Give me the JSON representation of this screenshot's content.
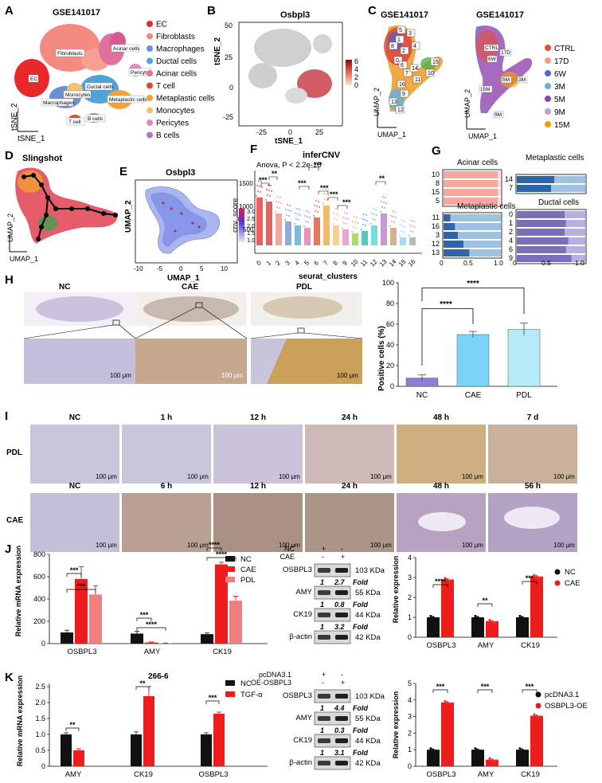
{
  "panels": {
    "A": {
      "letter": "A",
      "title": "GSE141017",
      "xlabel": "tSNE_1",
      "ylabel": "tSNE_2",
      "legend": [
        {
          "label": "EC",
          "color": "#e8282a"
        },
        {
          "label": "Fibroblasts",
          "color": "#f48a80"
        },
        {
          "label": "Macrophages",
          "color": "#6b8fcf"
        },
        {
          "label": "Ductal cells",
          "color": "#4ea3d9"
        },
        {
          "label": "Acinar cells",
          "color": "#e070a0"
        },
        {
          "label": "T cell",
          "color": "#d94e2a"
        },
        {
          "label": "Metaplastic cells",
          "color": "#f0a33a"
        },
        {
          "label": "Monocytes",
          "color": "#f5c06b"
        },
        {
          "label": "Pericytes",
          "color": "#e586c4"
        },
        {
          "label": "B cells",
          "color": "#b574c9"
        }
      ],
      "cluster_labels": [
        "Fibroblasts",
        "Acinar cells",
        "EC",
        "Pericytes",
        "Ductal cells",
        "Metaplastic cells",
        "Macrophages",
        "Monocytes",
        "T cell",
        "B cells"
      ]
    },
    "B": {
      "letter": "B",
      "title": "Osbpl3",
      "xlabel": "tSNE_1",
      "ylabel": "tSNE_2",
      "xticks": [
        "-25",
        "0",
        "25"
      ],
      "yticks": [
        "50",
        "25",
        "0",
        "-25"
      ],
      "colorbar": [
        "6",
        "4",
        "2",
        "0"
      ]
    },
    "C": {
      "letter": "C",
      "title_left": "GSE141017",
      "title_right": "GSE141017",
      "xlabel": "UMAP_1",
      "ylabel": "UMAP_2",
      "clusters": [
        "5",
        "3",
        "1",
        "4",
        "8",
        "2",
        "0",
        "6",
        "7",
        "14",
        "15",
        "10",
        "11",
        "16",
        "9",
        "13",
        "12"
      ],
      "right_labels": [
        "CTRL",
        "17D",
        "6W",
        "5M",
        "15M",
        "3M",
        "9M"
      ],
      "legend": [
        {
          "label": "CTRL",
          "color": "#e74c3c"
        },
        {
          "label": "17D",
          "color": "#f4a07a"
        },
        {
          "label": "6W",
          "color": "#4b6cc1"
        },
        {
          "label": "3M",
          "color": "#6ab0d9"
        },
        {
          "label": "5M",
          "color": "#8e44ad"
        },
        {
          "label": "9M",
          "color": "#c39bd3"
        },
        {
          "label": "15M",
          "color": "#f39c12"
        }
      ]
    },
    "D": {
      "letter": "D",
      "title": "Slingshot",
      "xlabel": "UMAP_1",
      "ylabel": "UMAP_2"
    },
    "E": {
      "letter": "E",
      "title": "Osbpl3",
      "xlabel": "UMAP_1",
      "ylabel": "UMAP_2",
      "xticks": [
        "-10",
        "-5",
        "0",
        "5",
        "10"
      ],
      "colorbar": [
        "3.0",
        "2.5",
        "2.0",
        "1.5",
        "1.0"
      ]
    },
    "F": {
      "letter": "F",
      "title": "inferCNV",
      "stat": "Anova, P < 2.2e-16",
      "ylabel": "cnv_score",
      "xlabel": "seurat_clusters",
      "yticks": [
        "1500",
        "1000",
        "500"
      ],
      "clusters": [
        "0",
        "1",
        "2",
        "3",
        "4",
        "5",
        "6",
        "7",
        "8",
        "9",
        "10",
        "11",
        "12",
        "13",
        "14",
        "15",
        "16"
      ],
      "sig": [
        "***",
        "**",
        "***",
        "***",
        "***",
        "***",
        "***",
        "**"
      ]
    },
    "G": {
      "letter": "G",
      "subpanels": [
        {
          "title": "Acinar cells",
          "rows": [
            "10",
            "8",
            "15",
            "5"
          ]
        },
        {
          "title": "Metaplastic cells",
          "rows": [
            "14",
            "7"
          ]
        },
        {
          "title": "Metaplastic cells",
          "rows": [
            "11",
            "16",
            "3",
            "12",
            "13"
          ]
        },
        {
          "title": "Ductal cells",
          "rows": [
            "0",
            "1",
            "2",
            "4",
            "6",
            "9"
          ]
        }
      ],
      "xticks": [
        "0",
        "0.5",
        "1.0"
      ]
    },
    "H": {
      "letter": "H",
      "groups": [
        "NC",
        "CAE",
        "PDL"
      ],
      "scale": "100 μm",
      "chart_ylabel": "Positive cells (%)",
      "sig": [
        "****",
        "****"
      ]
    },
    "I": {
      "letter": "I",
      "row1_label": "PDL",
      "row1_times": [
        "NC",
        "1 h",
        "12 h",
        "24 h",
        "48 h",
        "7 d"
      ],
      "row2_label": "CAE",
      "row2_times": [
        "NC",
        "6 h",
        "12 h",
        "24 h",
        "48 h",
        "56 h"
      ],
      "scale": "100 μm"
    },
    "J": {
      "letter": "J",
      "ylabel": "Relative mRNA expression",
      "legend": [
        "NC",
        "CAE",
        "PDL"
      ],
      "sig": [
        "***",
        "***",
        "***",
        "****",
        "****",
        "****"
      ],
      "wb_header": [
        "NC",
        "CAE",
        "+",
        "-",
        "-",
        "+"
      ],
      "wb_rows": [
        {
          "label": "OSBPL3",
          "kda": "103 KDa",
          "fold": [
            "1",
            "2.7",
            "Fold"
          ]
        },
        {
          "label": "AMY",
          "kda": "55 KDa",
          "fold": [
            "1",
            "0.8",
            "Fold"
          ]
        },
        {
          "label": "CK19",
          "kda": "44 KDa",
          "fold": [
            "1",
            "3.2",
            "Fold"
          ]
        },
        {
          "label": "β-actin",
          "kda": "42 KDa",
          "fold": []
        }
      ],
      "rel_ylabel": "Relative expression",
      "rel_legend": [
        "NC",
        "CAE"
      ],
      "rel_sig": [
        "****",
        "**",
        "***"
      ]
    },
    "K": {
      "letter": "K",
      "title": "266-6",
      "ylabel": "Relative mRNA expression",
      "legend": [
        "NC",
        "TGF-α"
      ],
      "sig": [
        "**",
        "**",
        "***"
      ],
      "wb_header": [
        "pcDNA3.1",
        "OE-OSBPL3",
        "+",
        "-",
        "-",
        "+"
      ],
      "wb_rows": [
        {
          "label": "OSBPL3",
          "kda": "103 KDa",
          "fold": [
            "1",
            "4.4",
            "Fold"
          ]
        },
        {
          "label": "AMY",
          "kda": "55 KDa",
          "fold": [
            "1",
            "0.3",
            "Fold"
          ]
        },
        {
          "label": "CK19",
          "kda": "44 KDa",
          "fold": [
            "1",
            "3.1",
            "Fold"
          ]
        },
        {
          "label": "β-actin",
          "kda": "42 KDa",
          "fold": []
        }
      ],
      "rel_ylabel": "Relative expression",
      "rel_legend": [
        "pcDNA3.1",
        "OSBPL3-OE"
      ],
      "rel_sig": [
        "***",
        "***",
        "***"
      ]
    }
  },
  "chart_data": [
    {
      "id": "H-bar",
      "type": "bar",
      "categories": [
        "NC",
        "CAE",
        "PDL"
      ],
      "values": [
        8,
        50,
        55
      ],
      "errors": [
        3,
        3,
        6
      ],
      "ylabel": "Positive cells (%)",
      "ylim": [
        0,
        100
      ],
      "yticks": [
        "0",
        "20",
        "40",
        "60",
        "80",
        "100"
      ],
      "colors": [
        "#8b7fd6",
        "#79d4f7",
        "#b3ecf7"
      ]
    },
    {
      "id": "J-mrna",
      "type": "bar",
      "categories": [
        "OSBPL3",
        "AMY",
        "CK19"
      ],
      "series": [
        {
          "name": "NC",
          "values": [
            100,
            90,
            85
          ],
          "color": "#111111"
        },
        {
          "name": "CAE",
          "values": [
            580,
            10,
            710
          ],
          "color": "#ee1c1c"
        },
        {
          "name": "PDL",
          "values": [
            440,
            3,
            385
          ],
          "color": "#f08080"
        }
      ],
      "errors": [
        [
          20,
          20,
          10
        ],
        [
          110,
          5,
          20
        ],
        [
          80,
          2,
          40
        ]
      ],
      "ylabel": "Relative mRNA expression",
      "ylim": [
        0,
        800
      ],
      "yticks": [
        "0",
        "200",
        "400",
        "600",
        "800"
      ]
    },
    {
      "id": "J-rel",
      "type": "bar",
      "categories": [
        "OSBPL3",
        "AMY",
        "CK19"
      ],
      "series": [
        {
          "name": "NC",
          "values": [
            1,
            1,
            1
          ],
          "color": "#111111"
        },
        {
          "name": "CAE",
          "values": [
            2.9,
            0.8,
            3.05
          ],
          "color": "#ee1c1c"
        }
      ],
      "ylabel": "Relative expression",
      "ylim": [
        0,
        4
      ],
      "yticks": [
        "0",
        "1",
        "2",
        "3",
        "4"
      ]
    },
    {
      "id": "K-mrna",
      "type": "bar",
      "categories": [
        "AMY",
        "CK19",
        "OSBPL3"
      ],
      "series": [
        {
          "name": "NC",
          "values": [
            1.0,
            1.0,
            1.0
          ],
          "color": "#111111"
        },
        {
          "name": "TGF-α",
          "values": [
            0.5,
            2.2,
            1.65
          ],
          "color": "#ee1c1c"
        }
      ],
      "errors": [
        [
          0.05,
          0.08,
          0.05
        ],
        [
          0.05,
          0.3,
          0.05
        ]
      ],
      "ylabel": "Relative mRNA expression",
      "ylim": [
        0,
        2.6
      ],
      "yticks": [
        "0",
        "0.5",
        "1.0",
        "1.5",
        "2.0",
        "2.5"
      ]
    },
    {
      "id": "K-rel",
      "type": "bar",
      "categories": [
        "OSBPL3",
        "AMY",
        "CK19"
      ],
      "series": [
        {
          "name": "pcDNA3.1",
          "values": [
            1,
            1,
            1
          ],
          "color": "#111111"
        },
        {
          "name": "OSBPL3-OE",
          "values": [
            3.85,
            0.4,
            3.05
          ],
          "color": "#ee1c1c"
        }
      ],
      "ylabel": "Relative expression",
      "ylim": [
        0,
        5
      ],
      "yticks": [
        "0",
        "1",
        "2",
        "3",
        "4",
        "5"
      ]
    },
    {
      "id": "G-bars",
      "type": "bar",
      "categories": [
        "10",
        "8",
        "15",
        "5",
        "14",
        "7",
        "11",
        "16",
        "3",
        "12",
        "13",
        "0",
        "1",
        "2",
        "4",
        "6",
        "9"
      ],
      "values": [
        0.95,
        0.95,
        0.95,
        0.95,
        0.55,
        0.5,
        0.12,
        0.2,
        0.25,
        0.35,
        0.45,
        0.7,
        0.72,
        0.7,
        0.75,
        0.72,
        0.8
      ],
      "xlim": [
        0,
        1
      ]
    }
  ]
}
